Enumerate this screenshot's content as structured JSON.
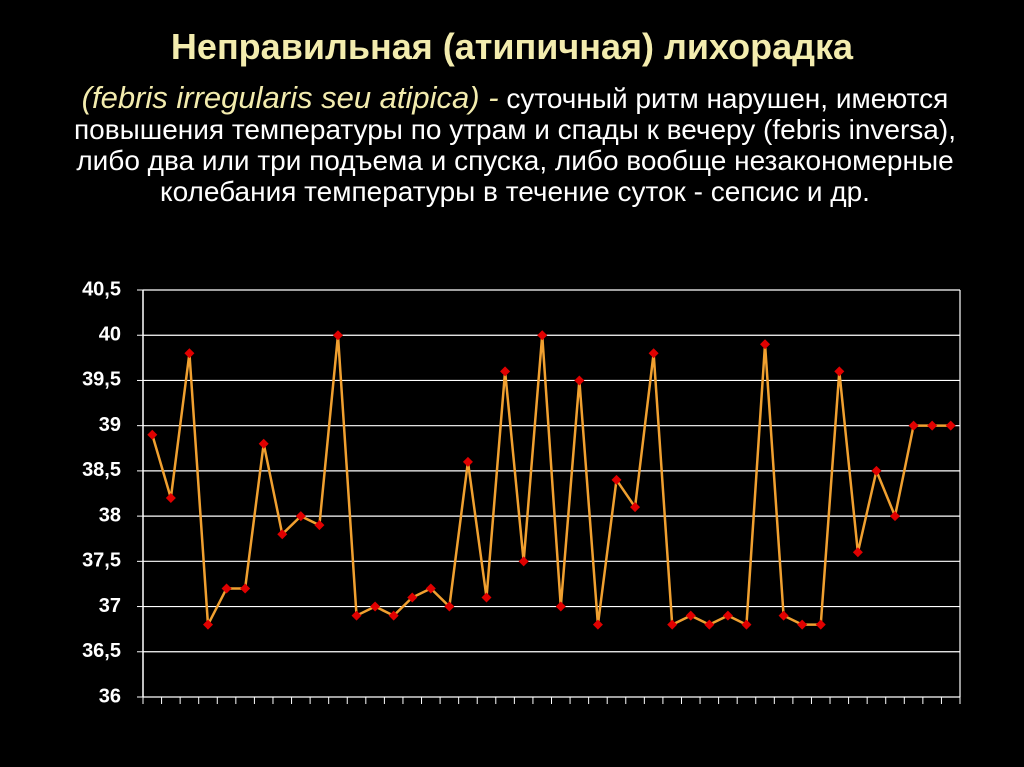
{
  "chart_data": {
    "type": "line",
    "title": "Неправильная (атипичная) лихорадка",
    "subtitle_term": "(febris irregularis seu atipica) -",
    "subtitle": "суточный ритм нарушен, имеются повышения температуры по утрам и спады к вечеру (febris inversa), либо два или три подъема и спуска, либо вообще незакономерные колебания температуры в течение суток - сепсис и др.",
    "values": [
      38.9,
      38.2,
      39.8,
      36.8,
      37.2,
      37.2,
      38.8,
      37.8,
      38.0,
      37.9,
      40.0,
      36.9,
      37.0,
      36.9,
      37.1,
      37.2,
      37.0,
      38.6,
      37.1,
      39.6,
      37.5,
      40.0,
      37.0,
      39.5,
      36.8,
      38.4,
      38.1,
      39.8,
      36.8,
      36.9,
      36.8,
      36.9,
      36.8,
      39.9,
      36.9,
      36.8,
      36.8,
      39.6,
      37.6,
      38.5,
      38.0,
      39.0,
      39.0,
      39.0
    ],
    "color": "#f0a030",
    "marker_color": "#e00000",
    "ylim": [
      36,
      40.5
    ],
    "yticks": [
      36,
      {
        "value": 36.5,
        "label": "36,5"
      },
      37,
      {
        "value": 37.5,
        "label": "37,5"
      },
      38,
      {
        "value": 38.5,
        "label": "38,5"
      },
      39,
      {
        "value": 39.5,
        "label": "39,5"
      },
      40,
      {
        "value": 40.5,
        "label": "40,5"
      }
    ],
    "grid": true
  }
}
